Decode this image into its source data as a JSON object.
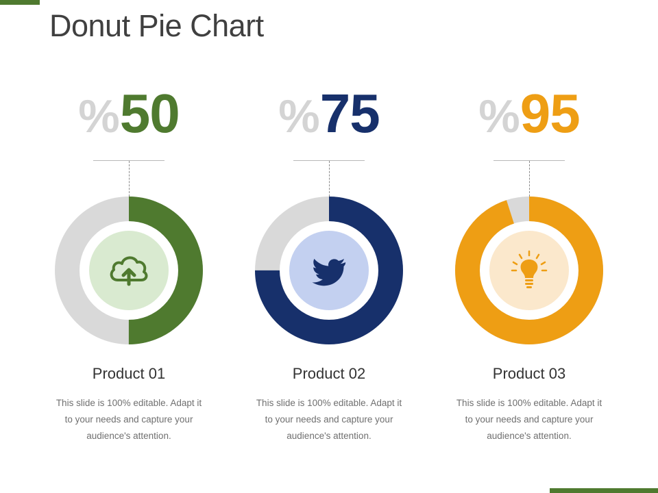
{
  "title": "Donut Pie Chart",
  "chart_data": {
    "type": "pie",
    "variant": "donut",
    "track_color": "#d9d9d9",
    "items": [
      {
        "label": "Product 01",
        "value": 50,
        "percent_sign": "%",
        "value_text": "50",
        "color": "#4f7a2f",
        "center_color": "#d9ead0",
        "icon": "cloud-upload-icon",
        "description": "This slide is 100% editable. Adapt it to your needs and capture your audience's attention."
      },
      {
        "label": "Product 02",
        "value": 75,
        "percent_sign": "%",
        "value_text": "75",
        "color": "#17306b",
        "center_color": "#c3d0f0",
        "icon": "twitter-bird-icon",
        "description": "This slide is 100% editable. Adapt it to your needs and capture your audience's attention."
      },
      {
        "label": "Product 03",
        "value": 95,
        "percent_sign": "%",
        "value_text": "95",
        "color": "#ee9e14",
        "center_color": "#fbe8cc",
        "icon": "lightbulb-icon",
        "description": "This slide is 100% editable. Adapt it to your needs and capture your audience's attention."
      }
    ]
  }
}
